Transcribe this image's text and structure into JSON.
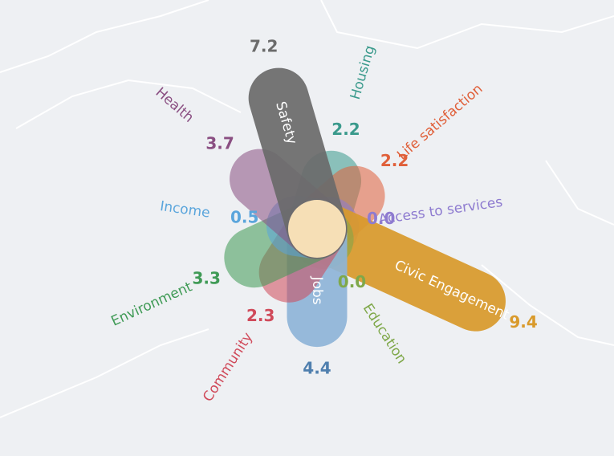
{
  "chart_data": {
    "type": "flower",
    "categories": [
      "Housing",
      "Life satisfaction",
      "Access to services",
      "Civic Engagement",
      "Education",
      "Jobs",
      "Community",
      "Environment",
      "Income",
      "Health",
      "Safety"
    ],
    "values": [
      2.2,
      2.2,
      0,
      9.4,
      0,
      4.4,
      2.3,
      3.3,
      0.5,
      3.7,
      7.2
    ],
    "value_labels": [
      "2.2",
      "2.2",
      "0.0",
      "9.4",
      "0.0",
      "4.4",
      "2.3",
      "3.3",
      "0.5",
      "3.7",
      "7.2"
    ],
    "colors": [
      "#3a9a8c",
      "#e0603a",
      "#8e7bd0",
      "#d99a2b",
      "#7fa84a",
      "#8fb5d8",
      "#d04a5a",
      "#3f9a55",
      "#5aa5dc",
      "#8a4f82",
      "#6b6b6b"
    ]
  }
}
